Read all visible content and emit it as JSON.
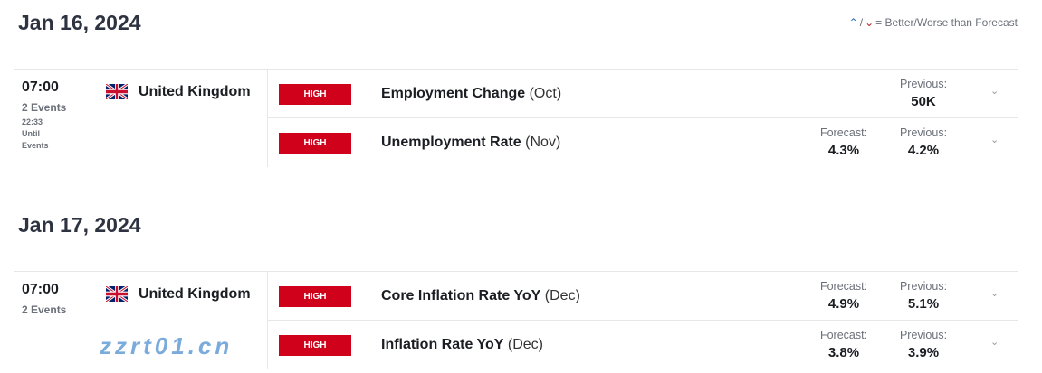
{
  "legend": {
    "better_icon": "arrow-up-dot-icon",
    "worse_icon": "arrow-down-dot-icon",
    "text": "= Better/Worse than Forecast",
    "better_color": "#2a6fb8",
    "worse_color": "#b5232a"
  },
  "impact_color": "#d0021b",
  "days": [
    {
      "date": "Jan 16, 2024",
      "time": "07:00",
      "count": "2 Events",
      "until": [
        "22:33",
        "Until",
        "Events"
      ],
      "country": "United Kingdom",
      "events": [
        {
          "impact": "HIGH",
          "name": "Employment Change",
          "period": "(Oct)",
          "forecast_label": "",
          "forecast": "",
          "previous_label": "Previous:",
          "previous": "50K"
        },
        {
          "impact": "HIGH",
          "name": "Unemployment Rate",
          "period": "(Nov)",
          "forecast_label": "Forecast:",
          "forecast": "4.3%",
          "previous_label": "Previous:",
          "previous": "4.2%"
        }
      ]
    },
    {
      "date": "Jan 17, 2024",
      "time": "07:00",
      "count": "2 Events",
      "country": "United Kingdom",
      "events": [
        {
          "impact": "HIGH",
          "name": "Core Inflation Rate YoY",
          "period": "(Dec)",
          "forecast_label": "Forecast:",
          "forecast": "4.9%",
          "previous_label": "Previous:",
          "previous": "5.1%"
        },
        {
          "impact": "HIGH",
          "name": "Inflation Rate YoY",
          "period": "(Dec)",
          "forecast_label": "Forecast:",
          "forecast": "3.8%",
          "previous_label": "Previous:",
          "previous": "3.9%"
        }
      ]
    }
  ],
  "watermark": "zzrt01.cn"
}
